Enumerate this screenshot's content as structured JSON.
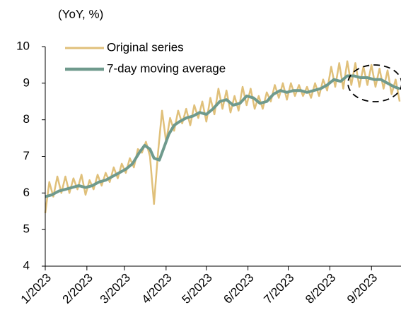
{
  "chart_data": {
    "type": "line",
    "y_label": "(YoY, %)",
    "xlim": [
      0,
      265
    ],
    "xticks": [
      {
        "value": 0,
        "label": "1/2023"
      },
      {
        "value": 31,
        "label": "2/2023"
      },
      {
        "value": 59,
        "label": "3/2023"
      },
      {
        "value": 90,
        "label": "4/2023"
      },
      {
        "value": 120,
        "label": "5/2023"
      },
      {
        "value": 151,
        "label": "6/2023"
      },
      {
        "value": 181,
        "label": "7/2023"
      },
      {
        "value": 212,
        "label": "8/2023"
      },
      {
        "value": 243,
        "label": "9/2023"
      }
    ],
    "ylim": [
      4,
      10
    ],
    "yticks": [
      4,
      5,
      6,
      7,
      8,
      9,
      10
    ],
    "legend": "upper left",
    "series": [
      {
        "name": "Original series",
        "color": "#e0c07a",
        "x": [
          0,
          3,
          6,
          9,
          12,
          15,
          18,
          21,
          24,
          27,
          30,
          33,
          36,
          39,
          42,
          45,
          48,
          51,
          54,
          57,
          60,
          63,
          66,
          69,
          72,
          75,
          78,
          81,
          84,
          87,
          90,
          93,
          96,
          99,
          102,
          105,
          108,
          111,
          114,
          117,
          120,
          123,
          126,
          129,
          132,
          135,
          138,
          141,
          144,
          147,
          150,
          153,
          156,
          159,
          162,
          165,
          168,
          171,
          174,
          177,
          180,
          183,
          186,
          189,
          192,
          195,
          198,
          201,
          204,
          207,
          210,
          213,
          216,
          219,
          222,
          225,
          228,
          231,
          234,
          237,
          240,
          243,
          246,
          249,
          252,
          255,
          258,
          261,
          264
        ],
        "values": [
          5.45,
          6.3,
          5.9,
          6.45,
          6.0,
          6.45,
          6.0,
          6.4,
          6.1,
          6.5,
          5.95,
          6.35,
          6.1,
          6.5,
          6.2,
          6.55,
          6.3,
          6.7,
          6.4,
          6.8,
          6.55,
          6.95,
          6.7,
          7.2,
          7.1,
          7.4,
          7.0,
          5.7,
          7.1,
          8.25,
          7.4,
          8.05,
          7.7,
          8.25,
          7.9,
          8.3,
          7.85,
          8.4,
          8.05,
          8.5,
          7.95,
          8.6,
          8.15,
          8.85,
          8.3,
          8.8,
          8.2,
          8.65,
          8.25,
          8.9,
          8.4,
          8.85,
          8.3,
          8.65,
          8.3,
          8.75,
          8.5,
          8.95,
          8.6,
          9.0,
          8.55,
          9.0,
          8.65,
          8.95,
          8.65,
          8.9,
          8.6,
          9.0,
          8.65,
          9.1,
          8.8,
          9.45,
          8.9,
          9.55,
          8.85,
          9.6,
          8.95,
          9.55,
          8.9,
          9.45,
          8.95,
          9.5,
          8.9,
          9.4,
          8.85,
          9.35,
          8.7,
          9.1,
          8.5
        ]
      },
      {
        "name": "7-day moving average",
        "color": "#6f9a8d",
        "x": [
          0,
          5,
          10,
          15,
          20,
          25,
          30,
          35,
          40,
          45,
          50,
          55,
          60,
          65,
          70,
          74,
          78,
          81,
          85,
          88,
          92,
          96,
          100,
          105,
          110,
          115,
          120,
          125,
          130,
          135,
          140,
          145,
          150,
          155,
          160,
          165,
          170,
          175,
          180,
          185,
          190,
          195,
          200,
          205,
          210,
          215,
          220,
          225,
          230,
          235,
          240,
          245,
          250,
          255,
          260,
          264
        ],
        "values": [
          5.9,
          5.95,
          6.05,
          6.1,
          6.15,
          6.2,
          6.15,
          6.2,
          6.3,
          6.35,
          6.45,
          6.55,
          6.65,
          6.8,
          7.1,
          7.3,
          7.2,
          6.95,
          6.9,
          7.2,
          7.6,
          7.85,
          7.95,
          8.05,
          8.1,
          8.2,
          8.15,
          8.3,
          8.5,
          8.55,
          8.4,
          8.45,
          8.65,
          8.6,
          8.45,
          8.5,
          8.7,
          8.8,
          8.75,
          8.8,
          8.8,
          8.75,
          8.8,
          8.85,
          8.95,
          9.1,
          9.05,
          9.2,
          9.2,
          9.15,
          9.15,
          9.1,
          9.1,
          9.0,
          8.9,
          8.85
        ]
      }
    ]
  }
}
